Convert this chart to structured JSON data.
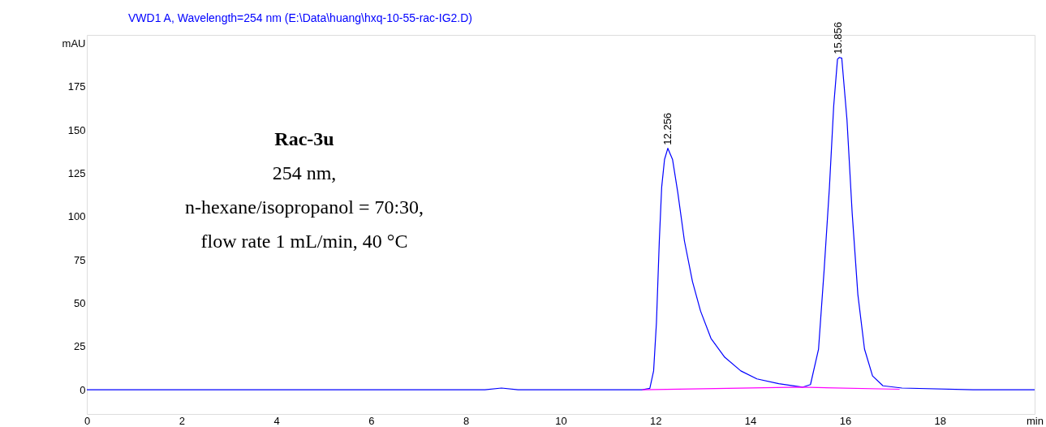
{
  "chart_data": {
    "type": "line",
    "title": "VWD1 A, Wavelength=254 nm (E:\\Data\\huang\\hxq-10-55-rac-IG2.D)",
    "xlim": [
      0,
      20
    ],
    "ylim": [
      -14,
      205
    ],
    "xticks": [
      0,
      2,
      4,
      6,
      8,
      10,
      12,
      14,
      16,
      18,
      {
        "value": 20,
        "label": "min"
      }
    ],
    "yticks": [
      0,
      25,
      50,
      75,
      100,
      125,
      150,
      175,
      {
        "value": 200,
        "label": "mAU"
      }
    ],
    "grid": false,
    "marker": "none",
    "line_style": "solid",
    "series": [
      {
        "color": "#0000ff",
        "x": [
          0,
          3,
          5,
          8.4,
          8.75,
          9.1,
          11.72,
          11.88,
          11.96,
          12.02,
          12.08,
          12.13,
          12.19,
          12.26,
          12.36,
          12.47,
          12.61,
          12.78,
          12.95,
          13.17,
          13.46,
          13.8,
          14.14,
          14.6,
          15.1,
          15.27,
          15.44,
          15.56,
          15.67,
          15.76,
          15.84,
          15.88,
          15.93,
          16.04,
          16.15,
          16.27,
          16.41,
          16.58,
          16.8,
          17.2,
          18.7,
          20
        ],
        "values": [
          0,
          0,
          0,
          0,
          1,
          0,
          0,
          0.8,
          10.9,
          39,
          86,
          117,
          133,
          139.5,
          133,
          114,
          86,
          62.5,
          45.5,
          29.7,
          18.8,
          10.9,
          6.3,
          3.5,
          1.5,
          3,
          23.5,
          70,
          117,
          164,
          191,
          192,
          191.6,
          156,
          102,
          55,
          23.5,
          8,
          2.3,
          1,
          0,
          0
        ]
      },
      {
        "color": "#ff00ff",
        "x": [
          11.72,
          15.07,
          17.15
        ],
        "values": [
          0,
          1.5,
          0.3
        ]
      }
    ],
    "annotations": [
      {
        "text": "12.256",
        "x": 12.256,
        "y": 139.5
      },
      {
        "text": "15.856",
        "x": 15.856,
        "y": 192
      },
      "Rac-3u",
      "254 nm,",
      "n-hexane/isopropanol = 70:30,",
      "flow rate 1 mL/min, 40 °C"
    ]
  }
}
